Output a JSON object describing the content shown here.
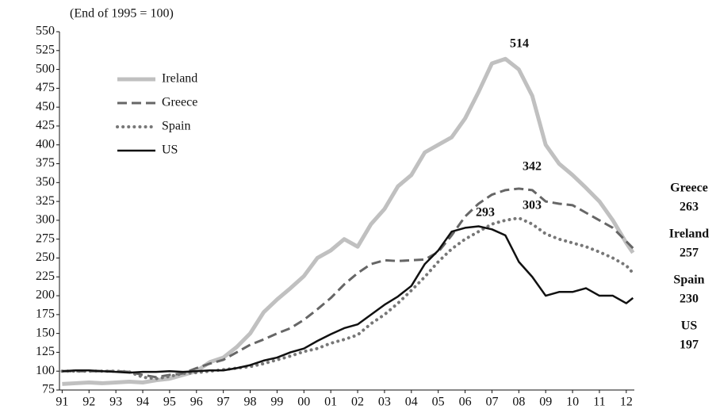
{
  "chart_data": {
    "type": "line",
    "subtitle": "(End of 1995 = 100)",
    "x": [
      1991,
      1991.5,
      1992,
      1992.5,
      1993,
      1993.5,
      1994,
      1994.5,
      1995,
      1995.5,
      1996,
      1996.5,
      1997,
      1997.5,
      1998,
      1998.5,
      1999,
      1999.5,
      2000,
      2000.5,
      2001,
      2001.5,
      2002,
      2002.5,
      2003,
      2003.5,
      2004,
      2004.5,
      2005,
      2005.5,
      2006,
      2006.5,
      2007,
      2007.5,
      2008,
      2008.5,
      2009,
      2009.5,
      2010,
      2010.5,
      2011,
      2011.5,
      2012,
      2012.25
    ],
    "series": [
      {
        "name": "Ireland",
        "color": "#c0c0c0",
        "style": "solid",
        "width": 5,
        "values": [
          83,
          84,
          85,
          84,
          85,
          86,
          85,
          88,
          90,
          95,
          100,
          112,
          118,
          132,
          150,
          178,
          195,
          210,
          226,
          250,
          260,
          275,
          265,
          295,
          315,
          345,
          360,
          390,
          400,
          410,
          435,
          470,
          508,
          514,
          500,
          465,
          400,
          375,
          360,
          343,
          325,
          300,
          270,
          257
        ]
      },
      {
        "name": "Greece",
        "color": "#666666",
        "style": "dashed",
        "width": 3,
        "values": [
          100,
          100,
          100,
          100,
          100,
          99,
          95,
          92,
          95,
          97,
          104,
          110,
          115,
          125,
          135,
          142,
          150,
          157,
          168,
          182,
          197,
          215,
          230,
          242,
          247,
          246,
          247,
          248,
          258,
          280,
          305,
          322,
          334,
          340,
          342,
          340,
          325,
          322,
          320,
          310,
          300,
          290,
          272,
          263
        ]
      },
      {
        "name": "Spain",
        "color": "#777777",
        "style": "dotted",
        "width": 4,
        "values": [
          100,
          100,
          100,
          100,
          100,
          99,
          92,
          90,
          93,
          97,
          98,
          100,
          102,
          104,
          106,
          110,
          115,
          120,
          126,
          130,
          137,
          142,
          148,
          163,
          175,
          190,
          207,
          225,
          245,
          262,
          275,
          285,
          295,
          300,
          303,
          295,
          282,
          275,
          270,
          265,
          258,
          250,
          240,
          230
        ]
      },
      {
        "name": "US",
        "color": "#111111",
        "style": "solid",
        "width": 2.5,
        "values": [
          100,
          101,
          101,
          100,
          99,
          98,
          99,
          99,
          100,
          99,
          100,
          101,
          101,
          104,
          108,
          114,
          118,
          125,
          130,
          140,
          149,
          157,
          162,
          175,
          188,
          199,
          213,
          242,
          260,
          285,
          290,
          292,
          288,
          280,
          245,
          225,
          200,
          205,
          205,
          210,
          200,
          200,
          190,
          197
        ]
      }
    ],
    "peak_labels": [
      514,
      342,
      303,
      293
    ],
    "end_labels": [
      {
        "name": "Greece",
        "value": 263
      },
      {
        "name": "Ireland",
        "value": 257
      },
      {
        "name": "Spain",
        "value": 230
      },
      {
        "name": "US",
        "value": 197
      }
    ],
    "xlim": [
      1990.9,
      2012.3
    ],
    "xticks": [
      {
        "value": 1991,
        "label": "91"
      },
      {
        "value": 1992,
        "label": "92"
      },
      {
        "value": 1993,
        "label": "93"
      },
      {
        "value": 1994,
        "label": "94"
      },
      {
        "value": 1995,
        "label": "95"
      },
      {
        "value": 1996,
        "label": "96"
      },
      {
        "value": 1997,
        "label": "97"
      },
      {
        "value": 1998,
        "label": "98"
      },
      {
        "value": 1999,
        "label": "99"
      },
      {
        "value": 2000,
        "label": "00"
      },
      {
        "value": 2001,
        "label": "01"
      },
      {
        "value": 2002,
        "label": "02"
      },
      {
        "value": 2003,
        "label": "03"
      },
      {
        "value": 2004,
        "label": "04"
      },
      {
        "value": 2005,
        "label": "05"
      },
      {
        "value": 2006,
        "label": "06"
      },
      {
        "value": 2007,
        "label": "07"
      },
      {
        "value": 2008,
        "label": "08"
      },
      {
        "value": 2009,
        "label": "09"
      },
      {
        "value": 2010,
        "label": "10"
      },
      {
        "value": 2011,
        "label": "11"
      },
      {
        "value": 2012,
        "label": "12"
      }
    ],
    "ylim": [
      75,
      550
    ],
    "yticks": [
      75,
      100,
      125,
      150,
      175,
      200,
      225,
      250,
      275,
      300,
      325,
      350,
      375,
      400,
      425,
      450,
      475,
      500,
      525,
      550
    ],
    "grid": false,
    "legend": "upper left"
  }
}
